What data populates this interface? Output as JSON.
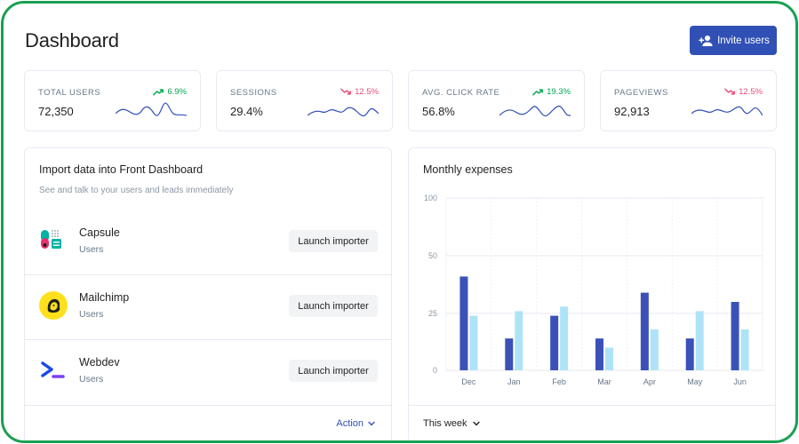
{
  "header": {
    "title": "Dashboard",
    "invite_label": "Invite users"
  },
  "stats": [
    {
      "label": "TOTAL USERS",
      "value": "72,350",
      "change": "6.9%",
      "trend": "up"
    },
    {
      "label": "SESSIONS",
      "value": "29.4%",
      "change": "12.5%",
      "trend": "down"
    },
    {
      "label": "AVG. CLICK RATE",
      "value": "56.8%",
      "change": "19.3%",
      "trend": "up"
    },
    {
      "label": "PAGEVIEWS",
      "value": "92,913",
      "change": "12.5%",
      "trend": "down"
    }
  ],
  "import_panel": {
    "title": "Import data into Front Dashboard",
    "subtitle": "See and talk to your users and leads immediately",
    "items": [
      {
        "name": "Capsule",
        "type": "Users",
        "button": "Launch importer",
        "icon": "capsule-logo-icon"
      },
      {
        "name": "Mailchimp",
        "type": "Users",
        "button": "Launch importer",
        "icon": "mailchimp-logo-icon"
      },
      {
        "name": "Webdev",
        "type": "Users",
        "button": "Launch importer",
        "icon": "webdev-logo-icon"
      }
    ],
    "action_label": "Action"
  },
  "expenses_panel": {
    "title": "Monthly expenses",
    "period_label": "This week"
  },
  "colors": {
    "accent": "#3150b5",
    "frame": "#1aa052",
    "up": "#00a84e",
    "down": "#ed4c78",
    "series_dark": "#3b51b8",
    "series_light": "#aee3f7"
  },
  "chart_data": {
    "type": "bar",
    "categories": [
      "Dec",
      "Jan",
      "Feb",
      "Mar",
      "Apr",
      "May",
      "Jun"
    ],
    "series": [
      {
        "values": [
          41,
          14,
          24,
          14,
          34,
          14,
          30
        ]
      },
      {
        "values": [
          24,
          26,
          28,
          10,
          18,
          26,
          18
        ]
      }
    ],
    "y_ticks": [
      0,
      25,
      50,
      100
    ],
    "ylim": [
      0,
      100
    ],
    "grid": true
  }
}
